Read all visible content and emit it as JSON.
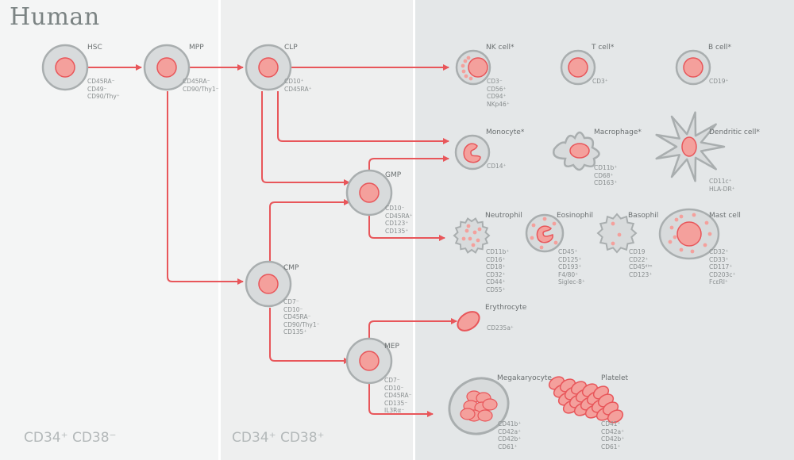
{
  "title": "Human",
  "footer": {
    "left": "CD34⁺ CD38⁻",
    "right": "CD34⁺ CD38⁺"
  },
  "colors": {
    "arrow": "#e8565a",
    "nucleus": "#f4a09c",
    "cell": "#d8dbdc",
    "cell_border": "#a9aeaf"
  },
  "cells": {
    "hsc": {
      "name": "HSC",
      "markers": [
        "CD45RA⁻",
        "CD49⁻",
        "CD90/Thy⁺"
      ]
    },
    "mpp": {
      "name": "MPP",
      "markers": [
        "CD45RA⁻",
        "CD90/Thy1⁻"
      ]
    },
    "clp": {
      "name": "CLP",
      "markers": [
        "CD10⁺",
        "CD45RA⁺"
      ]
    },
    "nk": {
      "name": "NK cell*",
      "markers": [
        "CD3⁻",
        "CD56⁺",
        "CD94⁺",
        "NKp46⁺"
      ]
    },
    "t": {
      "name": "T cell*",
      "markers": [
        "CD3⁺"
      ]
    },
    "b": {
      "name": "B cell*",
      "markers": [
        "CD19⁺"
      ]
    },
    "monocyte": {
      "name": "Monocyte*",
      "markers": [
        "CD14⁺"
      ]
    },
    "macrophage": {
      "name": "Macrophage*",
      "markers": [
        "CD11b⁺",
        "CD68⁺",
        "CD163⁺"
      ]
    },
    "dendritic": {
      "name": "Dendritic cell*",
      "markers": [
        "CD11c⁺",
        "HLA-DR⁺"
      ]
    },
    "gmp": {
      "name": "GMP",
      "markers": [
        "CD10⁻",
        "CD45RA⁺",
        "CD123⁺",
        "CD135⁺"
      ]
    },
    "neutrophil": {
      "name": "Neutrophil",
      "markers": [
        "CD11b⁺",
        "CD16⁺",
        "CD18⁺",
        "CD32⁺",
        "CD44⁺",
        "CD55⁺"
      ]
    },
    "eosinophil": {
      "name": "Eosinophil",
      "markers": [
        "CD45⁺",
        "CD125⁺",
        "CD193⁺",
        "F4/80⁺",
        "Siglec-8⁺"
      ]
    },
    "basophil": {
      "name": "Basophil",
      "markers": [
        "CD19",
        "CD22⁺",
        "CD45ᵈⁱᵐ",
        "CD123⁺"
      ]
    },
    "mast": {
      "name": "Mast cell",
      "markers": [
        "CD32⁺",
        "CD33⁺",
        "CD117⁺",
        "CD203c⁺",
        "FcεRI⁺"
      ]
    },
    "cmp": {
      "name": "CMP",
      "markers": [
        "CD7⁻",
        "CD10⁻",
        "CD45RA⁻",
        "CD90/Thy1⁻",
        "CD135⁺"
      ]
    },
    "erythrocyte": {
      "name": "Erythrocyte",
      "markers": [
        "CD235a⁺"
      ]
    },
    "mep": {
      "name": "MEP",
      "markers": [
        "CD7⁻",
        "CD10⁻",
        "CD45RA⁻",
        "CD135⁻",
        "IL3Rα⁻"
      ]
    },
    "megakaryocyte": {
      "name": "Megakaryocyte",
      "markers": [
        "CD41b⁺",
        "CD42a⁺",
        "CD42b⁺",
        "CD61⁺"
      ]
    },
    "platelet": {
      "name": "Platelet",
      "markers": [
        "CD41⁺",
        "CD42a⁺",
        "CD42b⁺",
        "CD61⁺"
      ]
    }
  }
}
